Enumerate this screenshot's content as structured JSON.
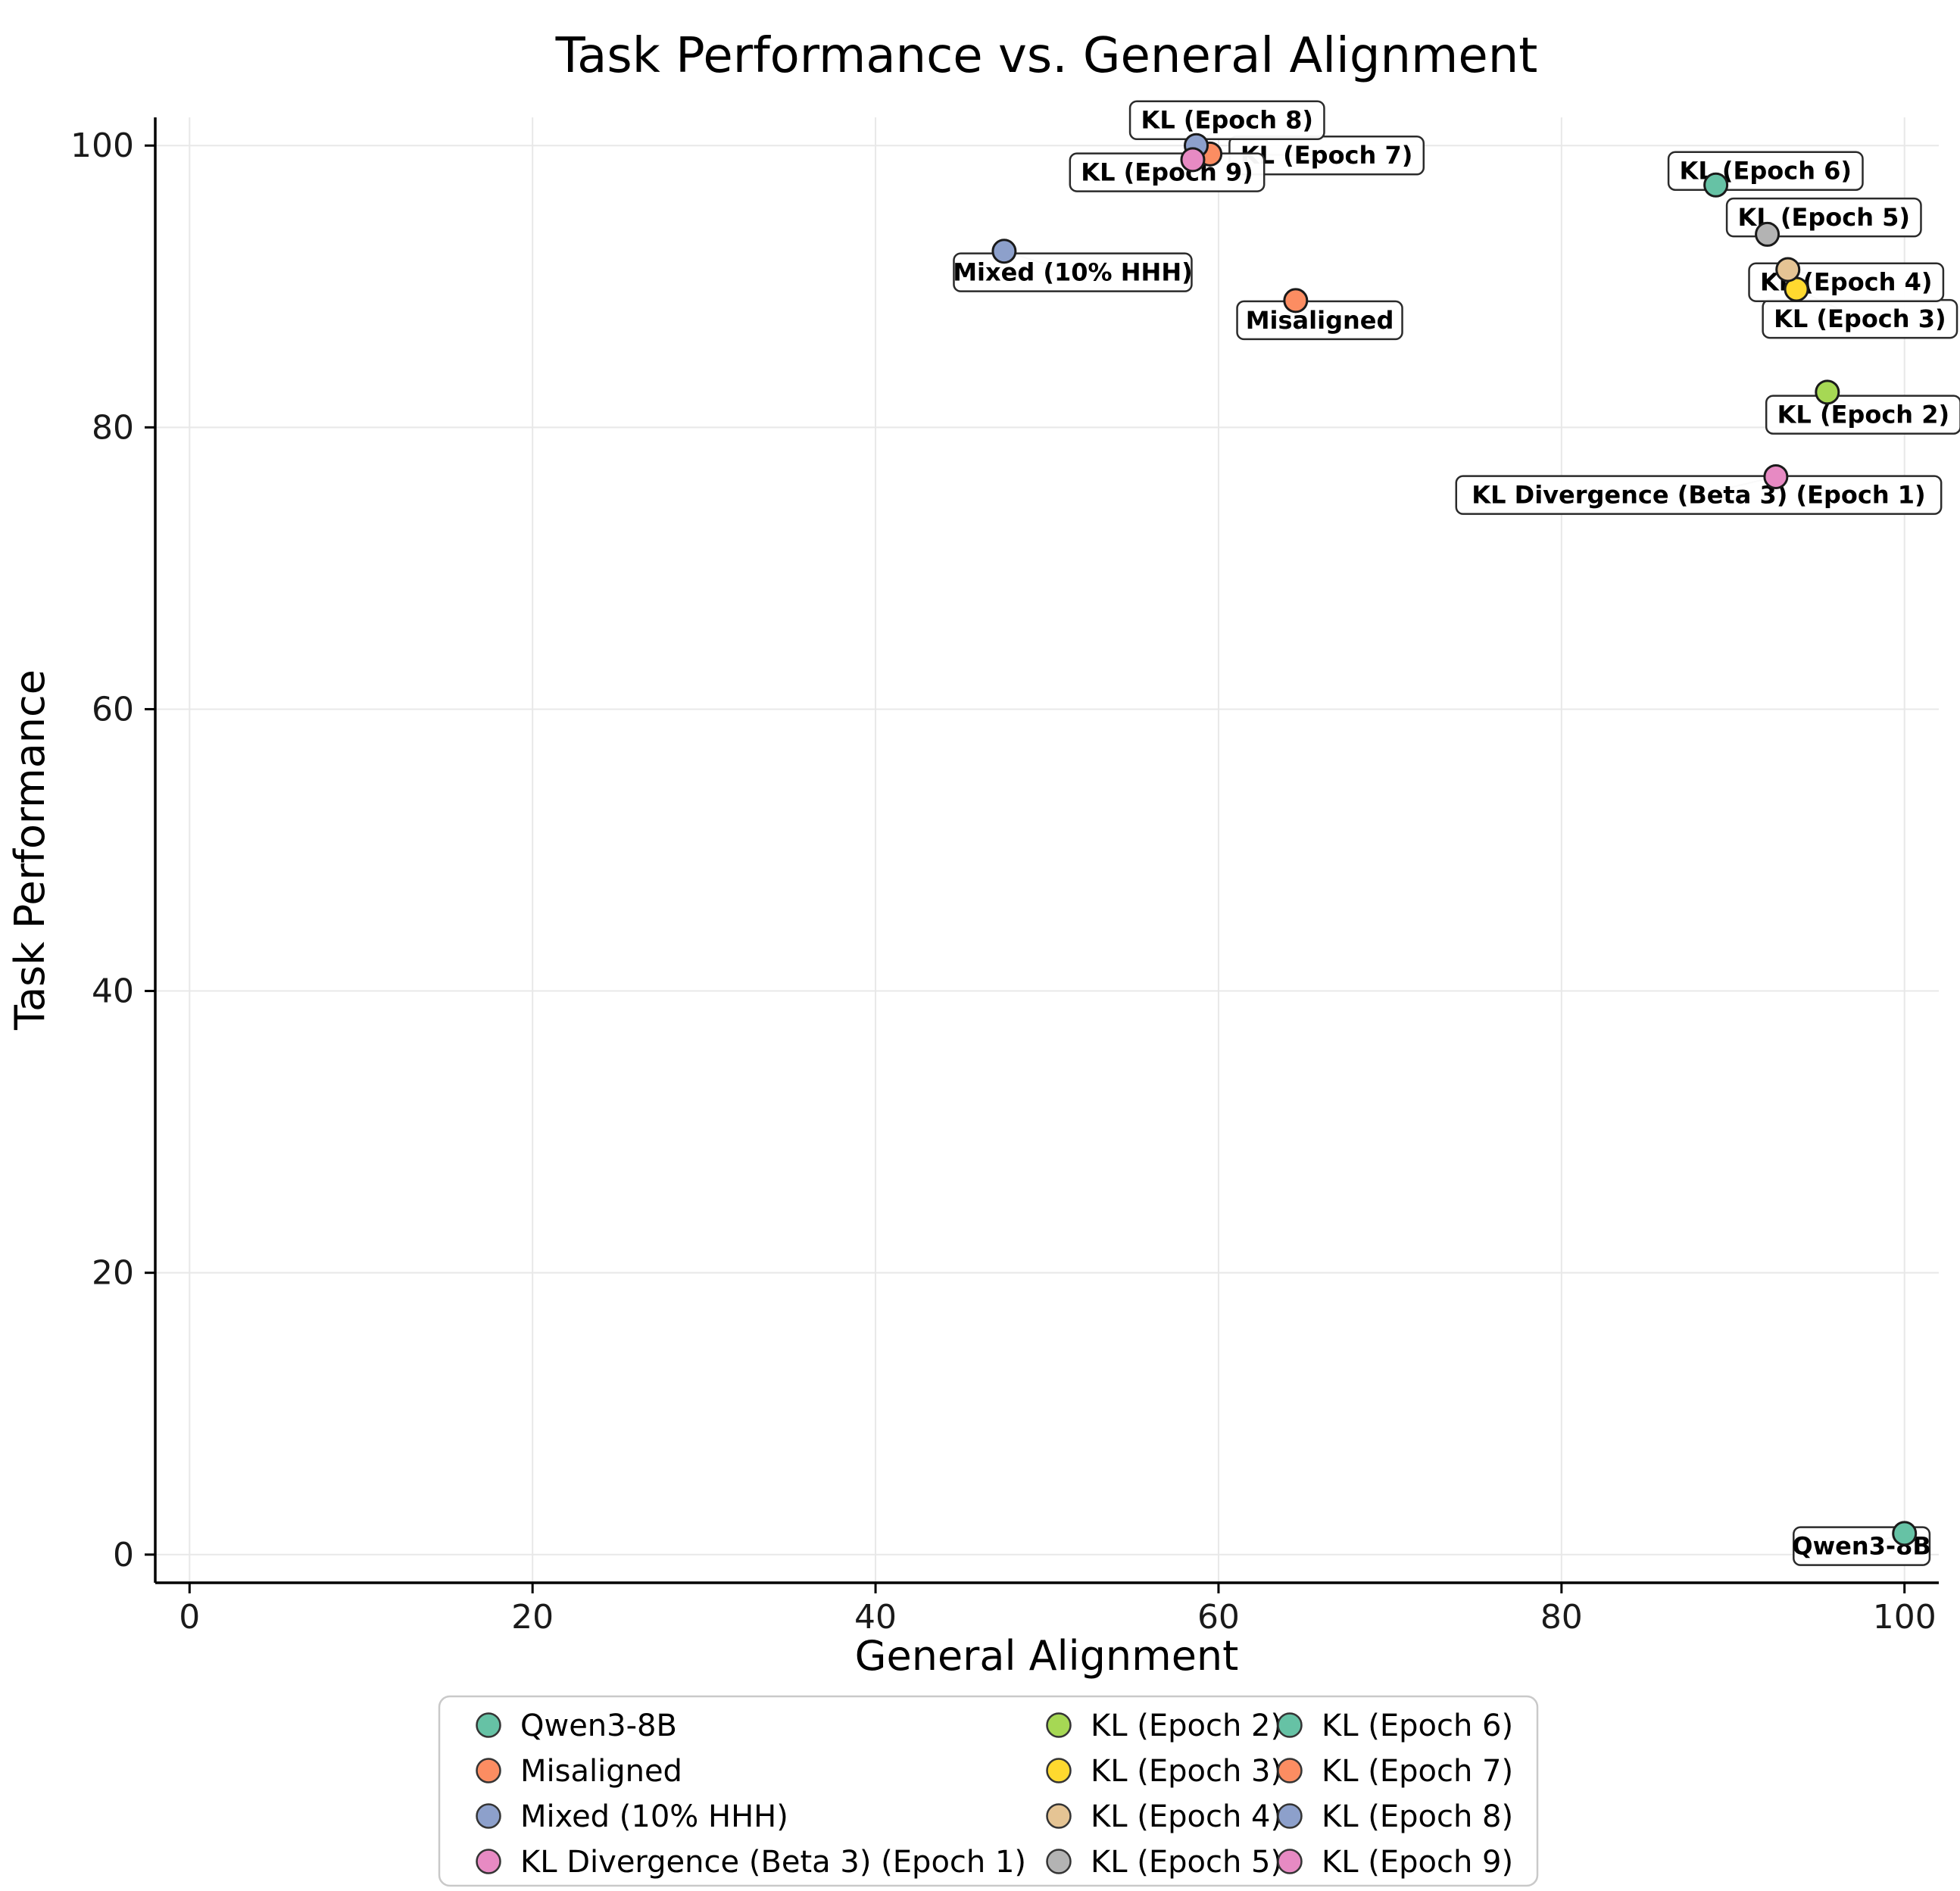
{
  "chart_data": {
    "type": "scatter",
    "title": "Task Performance vs. General Alignment",
    "xlabel": "General Alignment",
    "ylabel": "Task Performance",
    "xlim": [
      -2,
      102
    ],
    "ylim": [
      -2,
      102
    ],
    "xticks": [
      0,
      20,
      40,
      60,
      80,
      100
    ],
    "yticks": [
      0,
      20,
      40,
      60,
      80,
      100
    ],
    "grid": true,
    "grid_color": "#e8e8e8",
    "marker_edge_color": "#1a1a1a",
    "annotation_box_color": "#ffffff",
    "annotation_border_color": "#2b2b2b",
    "leader_line_color": "#808080",
    "legend_position": "bottom-center",
    "legend_columns": 3,
    "legend_rows_per_column": 4,
    "series": [
      {
        "name": "Qwen3-8B",
        "x": 100.0,
        "y": 1.5,
        "color": "#66c2a5",
        "label_x": 97.5,
        "label_y": 0.6
      },
      {
        "name": "Misaligned",
        "x": 64.5,
        "y": 89.0,
        "color": "#fc8d62",
        "label_x": 65.9,
        "label_y": 87.6
      },
      {
        "name": "Mixed (10% HHH)",
        "x": 47.5,
        "y": 92.5,
        "color": "#8da0cb",
        "label_x": 51.5,
        "label_y": 91.0
      },
      {
        "name": "KL Divergence (Beta 3) (Epoch 1)",
        "x": 92.5,
        "y": 76.5,
        "color": "#e78ac3",
        "label_x": 88.0,
        "label_y": 75.2
      },
      {
        "name": "KL (Epoch 2)",
        "x": 95.5,
        "y": 82.5,
        "color": "#a6d854",
        "label_x": 97.6,
        "label_y": 80.9
      },
      {
        "name": "KL (Epoch 3)",
        "x": 93.7,
        "y": 89.8,
        "color": "#ffd92f",
        "label_x": 97.4,
        "label_y": 87.7
      },
      {
        "name": "KL (Epoch 4)",
        "x": 93.2,
        "y": 91.2,
        "color": "#e5c494",
        "label_x": 96.6,
        "label_y": 90.3
      },
      {
        "name": "KL (Epoch 5)",
        "x": 92.0,
        "y": 93.7,
        "color": "#b3b3b3",
        "label_x": 95.3,
        "label_y": 94.9
      },
      {
        "name": "KL (Epoch 6)",
        "x": 89.0,
        "y": 97.2,
        "color": "#66c2a5",
        "label_x": 91.9,
        "label_y": 98.2
      },
      {
        "name": "KL (Epoch 7)",
        "x": 59.5,
        "y": 99.4,
        "color": "#fc8d62",
        "label_x": 66.3,
        "label_y": 99.3
      },
      {
        "name": "KL (Epoch 8)",
        "x": 58.7,
        "y": 100.0,
        "color": "#8da0cb",
        "label_x": 60.5,
        "label_y": 101.8
      },
      {
        "name": "KL (Epoch 9)",
        "x": 58.5,
        "y": 99.0,
        "color": "#e78ac3",
        "label_x": 57.0,
        "label_y": 98.1
      }
    ]
  }
}
